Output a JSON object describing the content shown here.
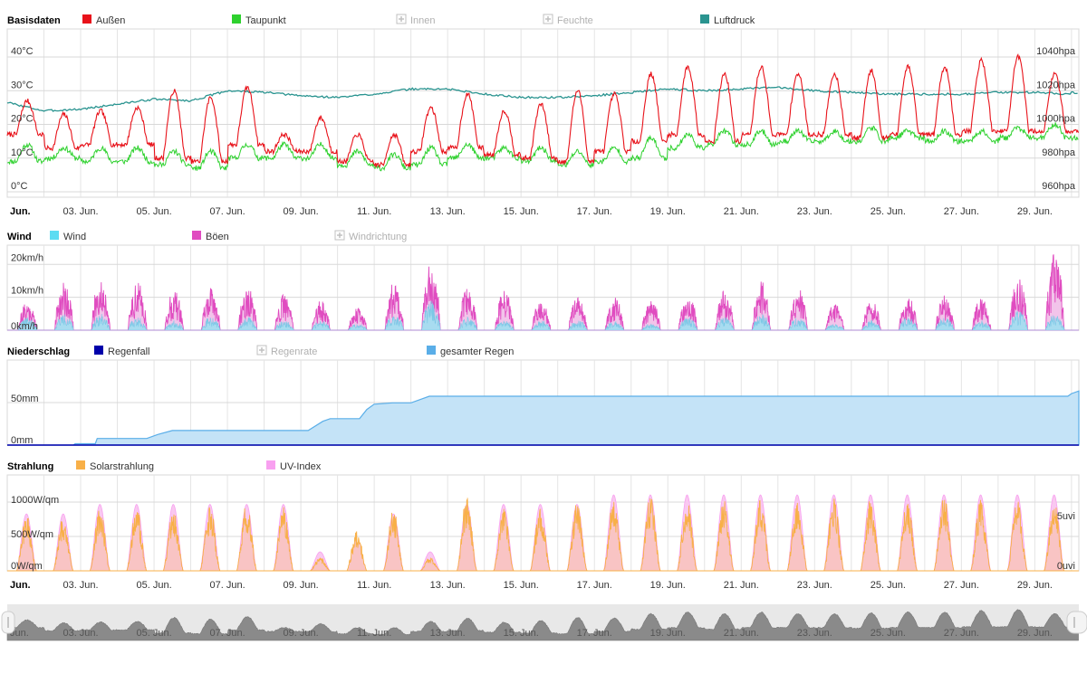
{
  "colors": {
    "aussen": "#e8121a",
    "taupunkt": "#2ed12e",
    "luftdruck": "#2a9490",
    "wind_fill": "#a8dcf0",
    "wind_legend": "#5cdcf2",
    "boeen": "#e04cc0",
    "regenfall": "#0000aa",
    "regen_total": "#5aaee8",
    "regen_fill": "#c4e3f7",
    "solar": "#f8b048",
    "solar_fill": "#f9c4c4",
    "uv": "#f8a0f0",
    "grid": "#d8d8d8",
    "disabled": "#b0b0b0"
  },
  "x_axis": {
    "start_label": "Jun.",
    "labels": [
      "03. Jun.",
      "05. Jun.",
      "07. Jun.",
      "09. Jun.",
      "11. Jun.",
      "13. Jun.",
      "15. Jun.",
      "17. Jun.",
      "19. Jun.",
      "21. Jun.",
      "23. Jun.",
      "25. Jun.",
      "27. Jun.",
      "29. Jun."
    ]
  },
  "navigator": {
    "start_label": "Jun.",
    "labels": [
      "03. Jun.",
      "05. Jun.",
      "07. Jun.",
      "09. Jun.",
      "11. Jun.",
      "13. Jun.",
      "15. Jun.",
      "17. Jun.",
      "19. Jun.",
      "21. Jun.",
      "23. Jun.",
      "25. Jun.",
      "27. Jun.",
      "29. Jun."
    ]
  },
  "chart_data": [
    {
      "type": "line",
      "title": "Basisdaten",
      "legend": [
        {
          "name": "Außen",
          "color": "#e8121a",
          "enabled": true
        },
        {
          "name": "Taupunkt",
          "color": "#2ed12e",
          "enabled": true
        },
        {
          "name": "Innen",
          "enabled": false
        },
        {
          "name": "Feuchte",
          "enabled": false
        },
        {
          "name": "Luftdruck",
          "color": "#2a9490",
          "enabled": true
        }
      ],
      "y_left": {
        "ticks": [
          "0°C",
          "10°C",
          "20°C",
          "30°C",
          "40°C"
        ],
        "range": [
          0,
          40
        ],
        "unit": "°C"
      },
      "y_right": {
        "ticks": [
          "960hpa",
          "980hpa",
          "1000hpa",
          "1020hpa",
          "1040hpa"
        ],
        "range": [
          960,
          1040
        ],
        "unit": "hpa"
      },
      "x_range_days": [
        1,
        30
      ],
      "series": [
        {
          "name": "Außen",
          "axis": "left",
          "daily_min": [
            17,
            13,
            14,
            14,
            10,
            9,
            14,
            12,
            12,
            9,
            8,
            12,
            13,
            11,
            10,
            9,
            12,
            15,
            17,
            15,
            17,
            17,
            17,
            16,
            17,
            17,
            18,
            18,
            18
          ],
          "daily_max": [
            27,
            23,
            24,
            25,
            30,
            28,
            31,
            17,
            22,
            17,
            17,
            25,
            29,
            24,
            26,
            30,
            29,
            35,
            37,
            35,
            37,
            35,
            35,
            36,
            37,
            37,
            39,
            40,
            35
          ]
        },
        {
          "name": "Taupunkt",
          "axis": "left",
          "daily_min": [
            9,
            10,
            9,
            9,
            8,
            7,
            10,
            10,
            10,
            8,
            7,
            8,
            10,
            10,
            9,
            8,
            9,
            10,
            13,
            14,
            14,
            15,
            15,
            15,
            16,
            15,
            15,
            16,
            16
          ],
          "daily_max": [
            14,
            13,
            13,
            13,
            12,
            12,
            14,
            14,
            14,
            12,
            11,
            13,
            14,
            13,
            13,
            12,
            13,
            16,
            17,
            18,
            18,
            18,
            18,
            19,
            18,
            18,
            18,
            19,
            20
          ]
        },
        {
          "name": "Luftdruck",
          "axis": "right",
          "values": [
            1013,
            1008,
            1009,
            1012,
            1015,
            1014,
            1020,
            1019,
            1017,
            1016,
            1018,
            1021,
            1021,
            1018,
            1016,
            1016,
            1017,
            1019,
            1021,
            1020,
            1021,
            1022,
            1020,
            1019,
            1018,
            1018,
            1018,
            1019,
            1019,
            1018
          ]
        }
      ]
    },
    {
      "type": "area",
      "title": "Wind",
      "legend": [
        {
          "name": "Wind",
          "color": "#5cdcf2",
          "enabled": true
        },
        {
          "name": "Böen",
          "color": "#e04cc0",
          "enabled": true
        },
        {
          "name": "Windrichtung",
          "enabled": false
        }
      ],
      "y_left": {
        "ticks": [
          "0km/h",
          "10km/h",
          "20km/h"
        ],
        "range": [
          0,
          22
        ],
        "unit": "km/h"
      },
      "x_range_days": [
        1,
        30
      ],
      "series": [
        {
          "name": "Böen",
          "daily_max": [
            9,
            15,
            16,
            15,
            12,
            13,
            13,
            11,
            9,
            7,
            15,
            21,
            13,
            12,
            9,
            10,
            10,
            9,
            11,
            12,
            15,
            13,
            8,
            9,
            10,
            11,
            10,
            16,
            24
          ]
        },
        {
          "name": "Wind",
          "daily_max": [
            4,
            5,
            5,
            4,
            3,
            4,
            4,
            3,
            3,
            2,
            5,
            9,
            4,
            3,
            3,
            3,
            3,
            2,
            4,
            4,
            5,
            4,
            2,
            3,
            4,
            4,
            3,
            6,
            5
          ]
        }
      ]
    },
    {
      "type": "area",
      "title": "Niederschlag",
      "legend": [
        {
          "name": "Regenfall",
          "color": "#0000aa",
          "enabled": true
        },
        {
          "name": "Regenrate",
          "enabled": false
        },
        {
          "name": "gesamter Regen",
          "color": "#5aaee8",
          "enabled": true
        }
      ],
      "y_left": {
        "ticks": [
          "0mm",
          "50mm"
        ],
        "range": [
          0,
          70
        ],
        "unit": "mm"
      },
      "x_range_days": [
        1,
        30
      ],
      "series": [
        {
          "name": "gesamter Regen",
          "points": [
            [
              1,
              0
            ],
            [
              2.8,
              0
            ],
            [
              2.85,
              1
            ],
            [
              3.4,
              1
            ],
            [
              3.45,
              5
            ],
            [
              4.8,
              5
            ],
            [
              5.1,
              8
            ],
            [
              5.5,
              11
            ],
            [
              6.5,
              11
            ],
            [
              9.2,
              11
            ],
            [
              9.6,
              18
            ],
            [
              9.8,
              20
            ],
            [
              10.6,
              20
            ],
            [
              10.8,
              27
            ],
            [
              11.0,
              31
            ],
            [
              11.5,
              32
            ],
            [
              12.0,
              32
            ],
            [
              12.3,
              35
            ],
            [
              12.5,
              37
            ],
            [
              29.9,
              37
            ],
            [
              30.0,
              39
            ],
            [
              30.2,
              41
            ],
            [
              30.2,
              41
            ]
          ]
        },
        {
          "name": "Regenfall",
          "points": [
            [
              1,
              0
            ],
            [
              30.2,
              0
            ]
          ]
        }
      ]
    },
    {
      "type": "area",
      "title": "Strahlung",
      "legend": [
        {
          "name": "Solarstrahlung",
          "color": "#f8b048",
          "enabled": true
        },
        {
          "name": "UV-Index",
          "color": "#f8a0f0",
          "enabled": true
        }
      ],
      "y_left": {
        "ticks": [
          "0W/qm",
          "500W/qm",
          "1000W/qm"
        ],
        "range": [
          0,
          1150
        ],
        "unit": "W/qm"
      },
      "y_right": {
        "ticks": [
          "0uvi",
          "5uvi"
        ],
        "range": [
          0,
          10
        ],
        "unit": "uvi"
      },
      "x_range_days": [
        1,
        30
      ],
      "series": [
        {
          "name": "Solarstrahlung",
          "daily_peak": [
            820,
            800,
            950,
            930,
            920,
            950,
            1000,
            950,
            200,
            600,
            900,
            200,
            1100,
            1000,
            950,
            1000,
            1050,
            1100,
            1050,
            1050,
            1050,
            1050,
            1050,
            1050,
            1050,
            1100,
            1050,
            1050,
            1050,
            1050
          ]
        },
        {
          "name": "UV-Index",
          "daily_peak": [
            6,
            6,
            7,
            7,
            7,
            7,
            7,
            7,
            2,
            3,
            6,
            2,
            7,
            7,
            7,
            7,
            8,
            8,
            8,
            8,
            8,
            8,
            8,
            8,
            8,
            8,
            8,
            8,
            8,
            8
          ]
        }
      ]
    }
  ]
}
